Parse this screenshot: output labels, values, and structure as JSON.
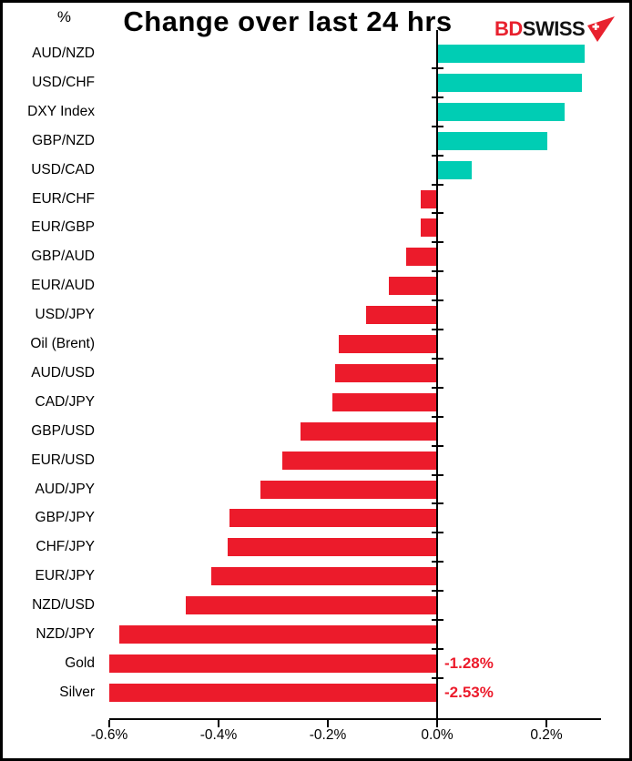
{
  "header": {
    "logo": {
      "bd": "BD",
      "swiss": "SWISS",
      "icon": "swiss-flag-pennant-icon",
      "bd_color": "#E8212E",
      "swiss_color": "#121212"
    }
  },
  "chart_data": {
    "type": "bar",
    "orientation": "horizontal",
    "title": "Change over last 24 hrs",
    "unit_label": "%",
    "xlabel": "",
    "ylabel": "",
    "grid": false,
    "xlim": [
      -0.6,
      0.3
    ],
    "xticks": [
      -0.6,
      -0.4,
      -0.2,
      0,
      0.2
    ],
    "xtick_labels": [
      "-0.6%",
      "-0.4%",
      "-0.2%",
      "0.0%",
      "0.2%"
    ],
    "bar_color_positive": "#00CDB4",
    "bar_color_negative": "#EC1B2B",
    "annotation_color": "#EC1B2B",
    "categories": [
      "AUD/NZD",
      "USD/CHF",
      "DXY Index",
      "GBP/NZD",
      "USD/CAD",
      "EUR/CHF",
      "EUR/GBP",
      "GBP/AUD",
      "EUR/AUD",
      "USD/JPY",
      "Oil (Brent)",
      "AUD/USD",
      "CAD/JPY",
      "GBP/USD",
      "EUR/USD",
      "AUD/JPY",
      "GBP/JPY",
      "CHF/JPY",
      "EUR/JPY",
      "NZD/USD",
      "NZD/JPY",
      "Gold",
      "Silver"
    ],
    "values": [
      0.27,
      0.265,
      0.233,
      0.201,
      0.063,
      -0.03,
      -0.03,
      -0.056,
      -0.089,
      -0.13,
      -0.18,
      -0.186,
      -0.192,
      -0.25,
      -0.284,
      -0.324,
      -0.38,
      -0.384,
      -0.414,
      -0.46,
      -0.582,
      -1.28,
      -2.53
    ],
    "annotations": [
      {
        "category": "Gold",
        "text": "-1.28%"
      },
      {
        "category": "Silver",
        "text": "-2.53%"
      }
    ]
  }
}
